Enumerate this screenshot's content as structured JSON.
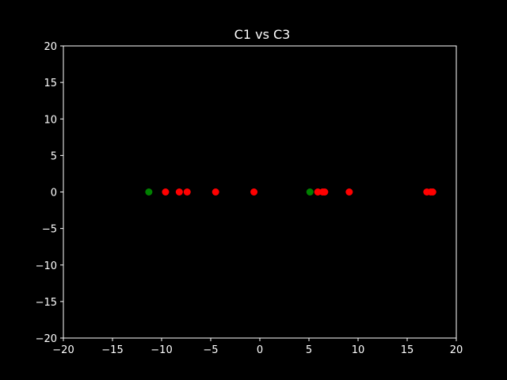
{
  "chart_data": {
    "type": "scatter",
    "title": "C1 vs C3",
    "xlabel": "",
    "ylabel": "",
    "xlim": [
      -20,
      20
    ],
    "ylim": [
      -20,
      20
    ],
    "xticks": [
      -20,
      -15,
      -10,
      -5,
      0,
      5,
      10,
      15,
      20
    ],
    "yticks": [
      -20,
      -15,
      -10,
      -5,
      0,
      5,
      10,
      15,
      20
    ],
    "x_tick_labels": [
      "−20",
      "−15",
      "−10",
      "−5",
      "0",
      "5",
      "10",
      "15",
      "20"
    ],
    "y_tick_labels": [
      "−20",
      "−15",
      "−10",
      "−5",
      "0",
      "5",
      "10",
      "15",
      "20"
    ],
    "grid": false,
    "legend": "none",
    "series": [
      {
        "color": "#008000",
        "points": [
          {
            "x": -11.3,
            "y": 0
          },
          {
            "x": 5.1,
            "y": 0
          }
        ]
      },
      {
        "color": "#ff0000",
        "points": [
          {
            "x": -9.6,
            "y": 0
          },
          {
            "x": -8.2,
            "y": 0
          },
          {
            "x": -7.4,
            "y": 0
          },
          {
            "x": -4.5,
            "y": 0
          },
          {
            "x": -0.6,
            "y": 0
          },
          {
            "x": 5.9,
            "y": 0
          },
          {
            "x": 6.4,
            "y": 0
          },
          {
            "x": 6.6,
            "y": 0
          },
          {
            "x": 9.1,
            "y": 0
          },
          {
            "x": 17.0,
            "y": 0
          },
          {
            "x": 17.4,
            "y": 0
          },
          {
            "x": 17.6,
            "y": 0
          }
        ]
      }
    ]
  },
  "colors": {
    "background": "#000000",
    "axes": "#ffffff",
    "text": "#ffffff"
  }
}
